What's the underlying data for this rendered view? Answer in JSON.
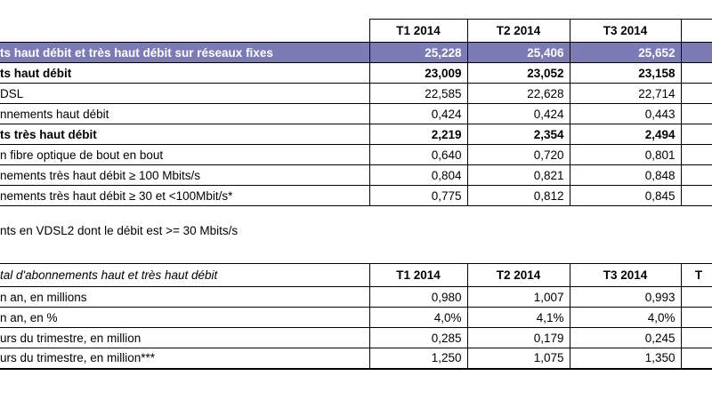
{
  "table1": {
    "header": [
      "T1 2014",
      "T2 2014",
      "T3 2014"
    ],
    "rows": [
      [
        "ts haut débit et très haut débit sur réseaux fixes",
        "25,228",
        "25,406",
        "25,652"
      ],
      [
        "ts haut débit",
        "23,009",
        "23,052",
        "23,158"
      ],
      [
        "DSL",
        "22,585",
        "22,628",
        "22,714"
      ],
      [
        "nnements haut débit",
        "0,424",
        "0,424",
        "0,443"
      ],
      [
        "ts très haut débit",
        "2,219",
        "2,354",
        "2,494"
      ],
      [
        "n fibre optique de bout en bout",
        "0,640",
        "0,720",
        "0,801"
      ],
      [
        "nements très haut débit ≥ 100 Mbits/s",
        "0,804",
        "0,821",
        "0,848"
      ],
      [
        "nements très haut débit ≥ 30 et <100Mbit/s*",
        "0,775",
        "0,812",
        "0,845"
      ]
    ]
  },
  "note": "nts en VDSL2 dont  le débit est >= 30 Mbits/s",
  "table2": {
    "title": "tal d'abonnements haut et très haut débit",
    "header": [
      "T1 2014",
      "T2 2014",
      "T3 2014",
      "T"
    ],
    "rows": [
      [
        "n an, en millions",
        "0,980",
        "1,007",
        "0,993"
      ],
      [
        "n an, en %",
        "4,0%",
        "4,1%",
        "4,0%"
      ],
      [
        "urs du trimestre, en million",
        "0,285",
        "0,179",
        "0,245"
      ],
      [
        "urs du trimestre, en million***",
        "1,250",
        "1,075",
        "1,350"
      ]
    ]
  }
}
